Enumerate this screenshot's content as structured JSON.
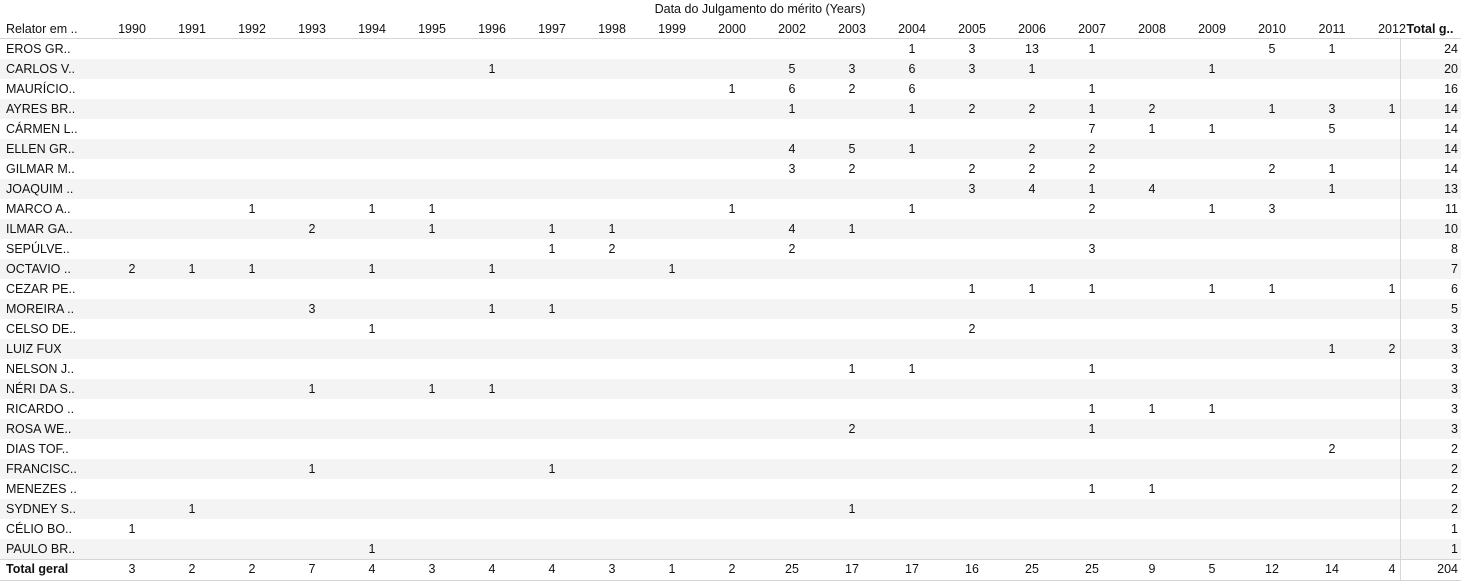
{
  "chart_data": {
    "type": "table",
    "column_group_label": "Data do Julgamento do mérito (Years)",
    "row_header": "Relator em ..",
    "total_header": "Total g..",
    "years": [
      "1990",
      "1991",
      "1992",
      "1993",
      "1994",
      "1995",
      "1996",
      "1997",
      "1998",
      "1999",
      "2000",
      "2002",
      "2003",
      "2004",
      "2005",
      "2006",
      "2007",
      "2008",
      "2009",
      "2010",
      "2011",
      "2012"
    ],
    "rows": [
      {
        "name": "EROS GR..",
        "values": {
          "2004": "1",
          "2005": "3",
          "2006": "13",
          "2007": "1",
          "2010": "5",
          "2011": "1"
        },
        "total": "24"
      },
      {
        "name": "CARLOS V..",
        "values": {
          "1996": "1",
          "2002": "5",
          "2003": "3",
          "2004": "6",
          "2005": "3",
          "2006": "1",
          "2009": "1"
        },
        "total": "20"
      },
      {
        "name": "MAURÍCIO..",
        "values": {
          "2000": "1",
          "2002": "6",
          "2003": "2",
          "2004": "6",
          "2007": "1"
        },
        "total": "16"
      },
      {
        "name": "AYRES BR..",
        "values": {
          "2002": "1",
          "2004": "1",
          "2005": "2",
          "2006": "2",
          "2007": "1",
          "2008": "2",
          "2010": "1",
          "2011": "3",
          "2012": "1"
        },
        "total": "14"
      },
      {
        "name": "CÁRMEN L..",
        "values": {
          "2007": "7",
          "2008": "1",
          "2009": "1",
          "2011": "5"
        },
        "total": "14"
      },
      {
        "name": "ELLEN GR..",
        "values": {
          "2002": "4",
          "2003": "5",
          "2004": "1",
          "2006": "2",
          "2007": "2"
        },
        "total": "14"
      },
      {
        "name": "GILMAR M..",
        "values": {
          "2002": "3",
          "2003": "2",
          "2005": "2",
          "2006": "2",
          "2007": "2",
          "2010": "2",
          "2011": "1"
        },
        "total": "14"
      },
      {
        "name": "JOAQUIM ..",
        "values": {
          "2005": "3",
          "2006": "4",
          "2007": "1",
          "2008": "4",
          "2011": "1"
        },
        "total": "13"
      },
      {
        "name": "MARCO A..",
        "values": {
          "1992": "1",
          "1994": "1",
          "1995": "1",
          "2000": "1",
          "2004": "1",
          "2007": "2",
          "2009": "1",
          "2010": "3"
        },
        "total": "11"
      },
      {
        "name": "ILMAR GA..",
        "values": {
          "1993": "2",
          "1995": "1",
          "1997": "1",
          "1998": "1",
          "2002": "4",
          "2003": "1"
        },
        "total": "10"
      },
      {
        "name": "SEPÚLVE..",
        "values": {
          "1997": "1",
          "1998": "2",
          "2002": "2",
          "2007": "3"
        },
        "total": "8"
      },
      {
        "name": "OCTAVIO ..",
        "values": {
          "1990": "2",
          "1991": "1",
          "1992": "1",
          "1994": "1",
          "1996": "1",
          "1999": "1"
        },
        "total": "7"
      },
      {
        "name": "CEZAR PE..",
        "values": {
          "2005": "1",
          "2006": "1",
          "2007": "1",
          "2009": "1",
          "2010": "1",
          "2012": "1"
        },
        "total": "6"
      },
      {
        "name": "MOREIRA ..",
        "values": {
          "1993": "3",
          "1996": "1",
          "1997": "1"
        },
        "total": "5"
      },
      {
        "name": "CELSO DE..",
        "values": {
          "1994": "1",
          "2005": "2"
        },
        "total": "3"
      },
      {
        "name": "LUIZ FUX",
        "values": {
          "2011": "1",
          "2012": "2"
        },
        "total": "3"
      },
      {
        "name": "NELSON J..",
        "values": {
          "2003": "1",
          "2004": "1",
          "2007": "1"
        },
        "total": "3"
      },
      {
        "name": "NÉRI DA S..",
        "values": {
          "1993": "1",
          "1995": "1",
          "1996": "1"
        },
        "total": "3"
      },
      {
        "name": "RICARDO ..",
        "values": {
          "2007": "1",
          "2008": "1",
          "2009": "1"
        },
        "total": "3"
      },
      {
        "name": "ROSA WE..",
        "values": {
          "2003": "2",
          "2007": "1"
        },
        "total": "3"
      },
      {
        "name": "DIAS TOF..",
        "values": {
          "2011": "2"
        },
        "total": "2"
      },
      {
        "name": "FRANCISC..",
        "values": {
          "1993": "1",
          "1997": "1"
        },
        "total": "2"
      },
      {
        "name": "MENEZES ..",
        "values": {
          "2007": "1",
          "2008": "1"
        },
        "total": "2"
      },
      {
        "name": "SYDNEY S..",
        "values": {
          "1991": "1",
          "2003": "1"
        },
        "total": "2"
      },
      {
        "name": "CÉLIO BO..",
        "values": {
          "1990": "1"
        },
        "total": "1"
      },
      {
        "name": "PAULO BR..",
        "values": {
          "1994": "1"
        },
        "total": "1"
      }
    ],
    "grand_total_row": {
      "name": "Total geral",
      "values": {
        "1990": "3",
        "1991": "2",
        "1992": "2",
        "1993": "7",
        "1994": "4",
        "1995": "3",
        "1996": "4",
        "1997": "4",
        "1998": "3",
        "1999": "1",
        "2000": "2",
        "2002": "25",
        "2003": "17",
        "2004": "17",
        "2005": "16",
        "2006": "25",
        "2007": "25",
        "2008": "9",
        "2009": "5",
        "2010": "12",
        "2011": "14",
        "2012": "4"
      },
      "total": "204"
    },
    "colors": {
      "band": "#f4f4f4",
      "grid": "#d6d6d6",
      "text": "#111111"
    }
  }
}
